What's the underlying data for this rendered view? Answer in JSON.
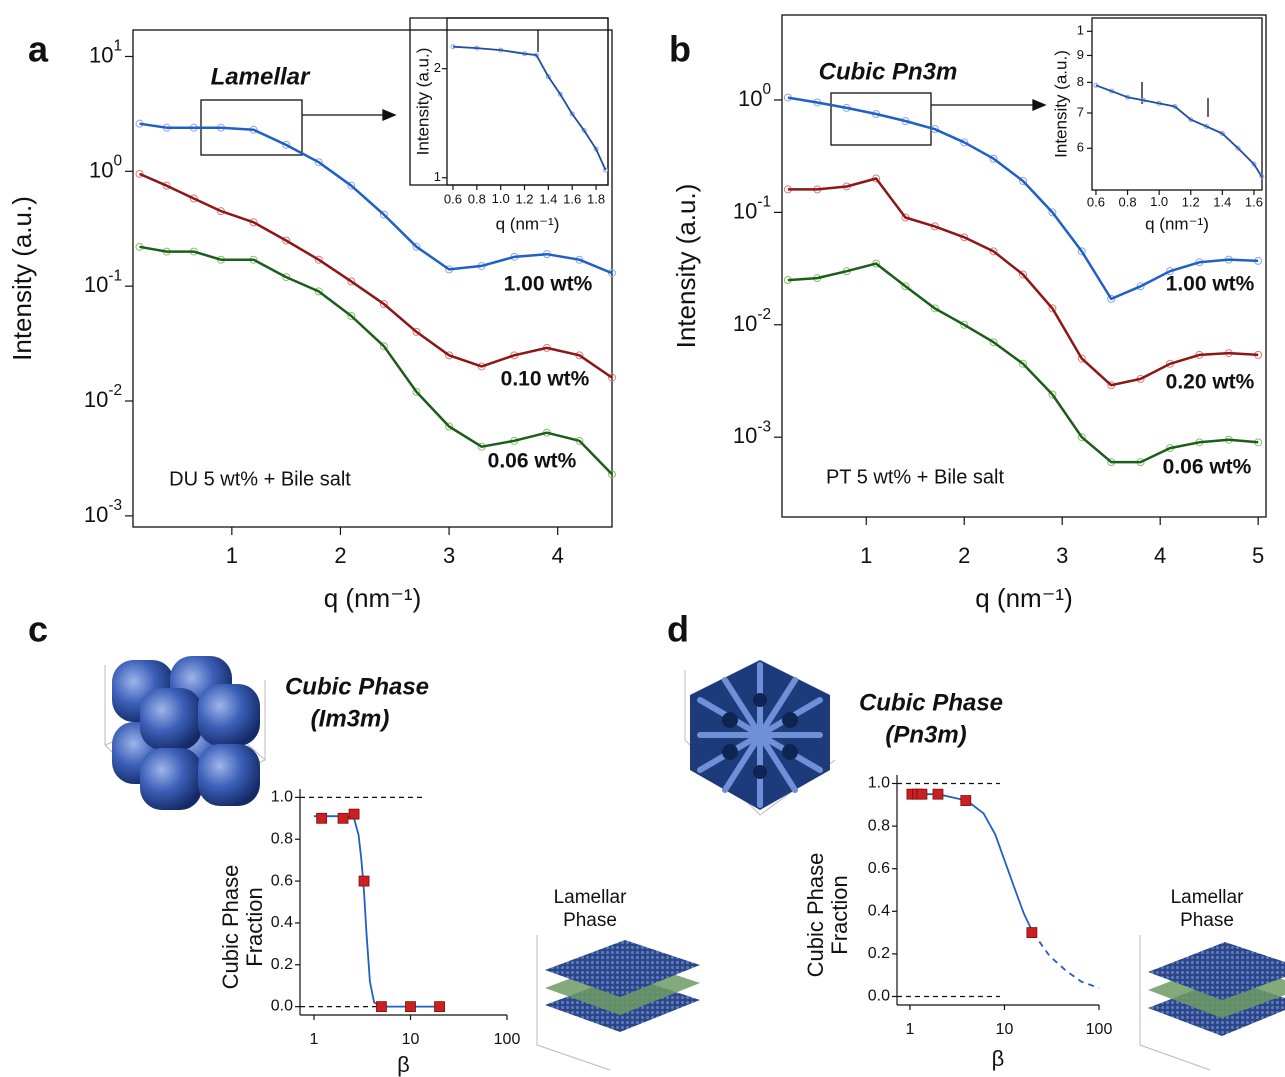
{
  "chart_data": [
    {
      "type": "line",
      "panel": "a",
      "title": "Lamellar",
      "annotation": "DU 5 wt% + Bile salt",
      "xlabel": "q (nm⁻¹)",
      "ylabel": "Intensity (a.u.)",
      "ylog": true,
      "xlim": [
        0.09,
        4.5
      ],
      "ylim": [
        0.0008,
        17
      ],
      "xticks": [
        1,
        2,
        3,
        4
      ],
      "yticks": [
        {
          "value": 0.001,
          "label": "10",
          "exponent": "-3"
        },
        {
          "value": 0.01,
          "label": "10",
          "exponent": "-2"
        },
        {
          "value": 0.1,
          "label": "10",
          "exponent": "-1"
        },
        {
          "value": 1,
          "label": "10",
          "exponent": "0"
        },
        {
          "value": 10,
          "label": "10",
          "exponent": "1"
        }
      ],
      "x": [
        0.15,
        0.4,
        0.65,
        0.9,
        1.2,
        1.5,
        1.8,
        2.1,
        2.4,
        2.7,
        3.0,
        3.3,
        3.6,
        3.9,
        4.2,
        4.5
      ],
      "series": [
        {
          "name": "1.00 wt%",
          "color": "#1f5fc8",
          "marker": "circle",
          "marker_color": "#8aa8e6",
          "values": [
            2.6,
            2.4,
            2.4,
            2.4,
            2.3,
            1.7,
            1.2,
            0.75,
            0.42,
            0.22,
            0.14,
            0.15,
            0.18,
            0.19,
            0.17,
            0.13
          ]
        },
        {
          "name": "0.10 wt%",
          "color": "#8e1616",
          "marker": "circle",
          "marker_color": "#e07a7a",
          "values": [
            0.95,
            0.75,
            0.58,
            0.45,
            0.36,
            0.25,
            0.17,
            0.11,
            0.07,
            0.04,
            0.025,
            0.02,
            0.025,
            0.029,
            0.025,
            0.016
          ]
        },
        {
          "name": "0.06 wt%",
          "color": "#1b5e1b",
          "marker": "circle",
          "marker_color": "#86c266",
          "values": [
            0.22,
            0.2,
            0.2,
            0.17,
            0.17,
            0.12,
            0.09,
            0.055,
            0.03,
            0.012,
            0.006,
            0.004,
            0.0045,
            0.0053,
            0.0045,
            0.0023
          ]
        }
      ]
    },
    {
      "type": "line",
      "xlabel": "q (nm⁻¹)",
      "ylabel": "Intensity (a.u.)",
      "ylog": true,
      "xlim": [
        0.55,
        1.9
      ],
      "ylim": [
        0.955,
        2.76
      ],
      "xticks": [
        0.6,
        0.8,
        {
          "value": 1,
          "label": "1.0"
        },
        1.2,
        1.4,
        1.6,
        1.8
      ],
      "yticks": [
        1,
        2
      ],
      "x": [
        0.6,
        0.8,
        1.0,
        1.2,
        1.3,
        1.4,
        1.5,
        1.6,
        1.7,
        1.8,
        1.88
      ],
      "series": [
        {
          "color": "#1f4f9e",
          "marker": "circle",
          "marker_color": "#8aa8e6",
          "values": [
            2.3,
            2.28,
            2.25,
            2.2,
            2.18,
            1.9,
            1.7,
            1.5,
            1.35,
            1.2,
            1.05
          ]
        }
      ]
    },
    {
      "type": "line",
      "panel": "b",
      "title": "Cubic Pn3m",
      "annotation": "PT 5 wt% + Bile salt",
      "xlabel": "q (nm⁻¹)",
      "ylabel": "Intensity (a.u.)",
      "ylog": true,
      "xlim": [
        0.14,
        5.08
      ],
      "ylim": [
        0.000195,
        5.7
      ],
      "xticks": [
        1,
        2,
        3,
        4,
        5
      ],
      "yticks": [
        {
          "value": 0.001,
          "label": "10",
          "exponent": "-3"
        },
        {
          "value": 0.01,
          "label": "10",
          "exponent": "-2"
        },
        {
          "value": 0.1,
          "label": "10",
          "exponent": "-1"
        },
        {
          "value": 1,
          "label": "10",
          "exponent": "0"
        }
      ],
      "x": [
        0.2,
        0.5,
        0.8,
        1.1,
        1.4,
        1.7,
        2.0,
        2.3,
        2.6,
        2.9,
        3.2,
        3.5,
        3.8,
        4.1,
        4.4,
        4.7,
        5.0
      ],
      "series": [
        {
          "name": "1.00 wt%",
          "color": "#1f5fc8",
          "marker": "circle",
          "marker_color": "#8aa8e6",
          "values": [
            1.05,
            0.95,
            0.85,
            0.75,
            0.65,
            0.55,
            0.42,
            0.3,
            0.19,
            0.1,
            0.045,
            0.017,
            0.022,
            0.03,
            0.036,
            0.038,
            0.037
          ]
        },
        {
          "name": "0.20 wt%",
          "color": "#8e1616",
          "marker": "circle",
          "marker_color": "#e07a7a",
          "values": [
            0.16,
            0.16,
            0.17,
            0.2,
            0.09,
            0.075,
            0.06,
            0.045,
            0.028,
            0.014,
            0.005,
            0.0029,
            0.0033,
            0.0045,
            0.0054,
            0.0056,
            0.0054
          ]
        },
        {
          "name": "0.06 wt%",
          "color": "#1b5e1b",
          "marker": "circle",
          "marker_color": "#86c266",
          "values": [
            0.025,
            0.026,
            0.03,
            0.035,
            0.022,
            0.014,
            0.01,
            0.007,
            0.0045,
            0.0024,
            0.001,
            0.0006,
            0.0006,
            0.0008,
            0.0009,
            0.00095,
            0.0009
          ]
        }
      ]
    },
    {
      "type": "line",
      "xlabel": "q (nm⁻¹)",
      "ylabel": "Intensity (a.u.)",
      "ylog": true,
      "xlim": [
        0.575,
        1.651
      ],
      "ylim": [
        5.0,
        10.6
      ],
      "xticks": [
        0.6,
        0.8,
        {
          "value": 1,
          "label": "1.0"
        },
        1.2,
        1.4,
        1.6
      ],
      "yticks": [
        6,
        7,
        8,
        9,
        {
          "value": 10,
          "label": "1"
        }
      ],
      "x": [
        0.6,
        0.7,
        0.8,
        0.9,
        1.0,
        1.1,
        1.2,
        1.3,
        1.4,
        1.5,
        1.6,
        1.65
      ],
      "series": [
        {
          "color": "#1f4f9e",
          "marker": "circle",
          "marker_color": "#8aa8e6",
          "values": [
            7.9,
            7.7,
            7.5,
            7.4,
            7.3,
            7.2,
            6.8,
            6.6,
            6.4,
            6.0,
            5.6,
            5.3
          ]
        }
      ]
    },
    {
      "type": "scatter",
      "panel": "c",
      "title": "Cubic Phase",
      "subtitle": "(Im3m)",
      "lamellar_label": [
        "Lamellar",
        "Phase"
      ],
      "xlabel": "β",
      "ylabel": [
        "Cubic Phase",
        "Fraction"
      ],
      "xlog": true,
      "xlim": [
        0.716,
        100
      ],
      "ylim": [
        -0.04,
        1.04
      ],
      "xticks": [
        1,
        10,
        100
      ],
      "yticks": [
        {
          "value": 0,
          "label": "0.0"
        },
        0.2,
        0.4,
        0.6,
        0.8,
        {
          "value": 1,
          "label": "1.0"
        }
      ],
      "hlines": [
        0,
        1
      ],
      "series": [
        {
          "color": "#1f5fc8",
          "x": [
            1,
            2,
            2.6,
            2.9,
            3.1,
            3.3,
            3.5,
            3.8,
            4.2,
            5,
            10,
            20
          ],
          "values": [
            0.91,
            0.91,
            0.9,
            0.82,
            0.7,
            0.55,
            0.35,
            0.12,
            0.02,
            0,
            0,
            0
          ]
        },
        {
          "color": "#cc1f1f",
          "marker": "square",
          "line": false,
          "x": [
            1.2,
            2,
            2.6,
            3.3,
            5,
            10,
            20
          ],
          "values": [
            0.9,
            0.9,
            0.92,
            0.6,
            0,
            0,
            0
          ]
        }
      ]
    },
    {
      "type": "scatter",
      "panel": "d",
      "title": "Cubic Phase",
      "subtitle": "(Pn3m)",
      "lamellar_label": [
        "Lamellar",
        "Phase"
      ],
      "xlabel": "β",
      "ylabel": [
        "Cubic Phase",
        "Fraction"
      ],
      "xlog": true,
      "xlim": [
        0.73,
        100
      ],
      "ylim": [
        -0.04,
        1.04
      ],
      "xticks": [
        1,
        10,
        100
      ],
      "yticks": [
        {
          "value": 0,
          "label": "0.0"
        },
        0.2,
        0.4,
        0.6,
        0.8,
        {
          "value": 1,
          "label": "1.0"
        }
      ],
      "hlines": [
        0,
        1
      ],
      "series": [
        {
          "color": "#1f5fc8",
          "x": [
            1,
            2,
            4,
            6,
            8,
            10,
            13,
            16,
            20
          ],
          "values": [
            0.95,
            0.95,
            0.92,
            0.86,
            0.76,
            0.64,
            0.5,
            0.39,
            0.3
          ]
        },
        {
          "color": "#1f5fc8",
          "dash": true,
          "x": [
            20,
            30,
            45,
            65,
            100
          ],
          "values": [
            0.3,
            0.19,
            0.12,
            0.07,
            0.04
          ]
        },
        {
          "color": "#cc1f1f",
          "marker": "square",
          "line": false,
          "x": [
            1.05,
            1.2,
            1.34,
            1.98,
            3.9,
            19.5
          ],
          "values": [
            0.95,
            0.95,
            0.95,
            0.95,
            0.92,
            0.3
          ]
        }
      ]
    }
  ]
}
